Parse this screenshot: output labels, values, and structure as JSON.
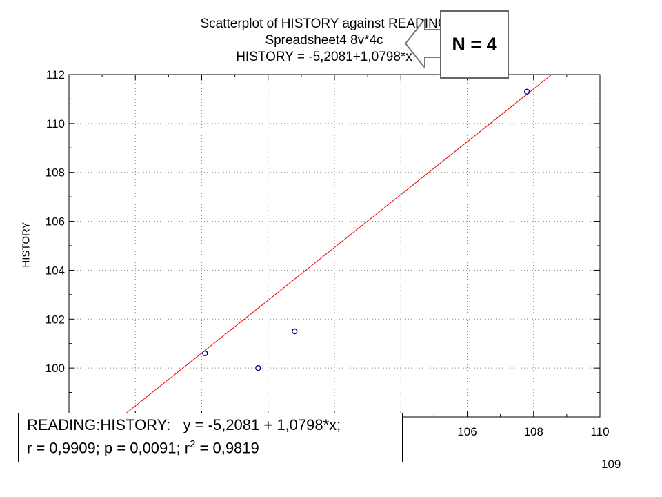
{
  "chart_data": {
    "type": "scatter",
    "title": "Scatterplot of HISTORY against READING",
    "subtitle": "Spreadsheet4 8v*4c",
    "equation": "HISTORY = -5,2081+1,0798*x",
    "xlabel": "",
    "ylabel": "HISTORY",
    "xlim": [
      94,
      110
    ],
    "ylim": [
      98,
      112
    ],
    "x_ticks": [
      "106",
      "108",
      "110"
    ],
    "y_ticks": [
      "100",
      "102",
      "104",
      "106",
      "108",
      "110",
      "112"
    ],
    "grid": true,
    "points": [
      {
        "x": 98.1,
        "y": 100.6
      },
      {
        "x": 99.7,
        "y": 100.0
      },
      {
        "x": 100.8,
        "y": 101.5
      },
      {
        "x": 107.8,
        "y": 111.3
      }
    ],
    "regression": {
      "intercept": -5.2081,
      "slope": 1.0798
    },
    "colors": {
      "points": "#00008b",
      "regression_line": "#ee0000",
      "axes": "#000000",
      "grid": "#888888"
    }
  },
  "annotation": {
    "label": "N = 4",
    "icon": "left-arrow-icon"
  },
  "stats": {
    "line1": "READING:HISTORY:   y = -5,2081 + 1,0798*x;",
    "line2_a": "r = 0,9909; p = 0,0091; r",
    "line2_sup": "2",
    "line2_b": " = 0,9819"
  },
  "page_number": "109"
}
